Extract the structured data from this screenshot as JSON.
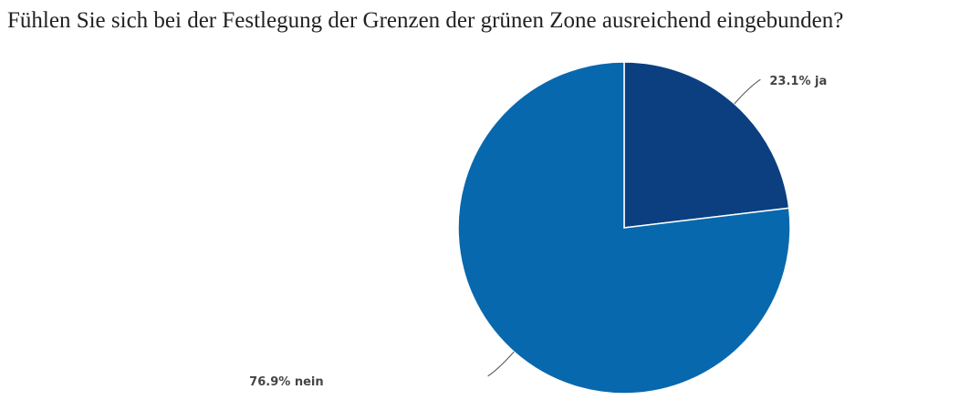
{
  "chart_data": {
    "type": "pie",
    "title": "Fühlen Sie sich bei der Festlegung der Grenzen der grünen Zone ausreichend eingebunden?",
    "categories": [
      "ja",
      "nein"
    ],
    "values": [
      23.1,
      76.9
    ],
    "value_labels": [
      "23.1%",
      "76.9%"
    ],
    "colors": [
      "#0b3f80",
      "#0868ad"
    ]
  }
}
